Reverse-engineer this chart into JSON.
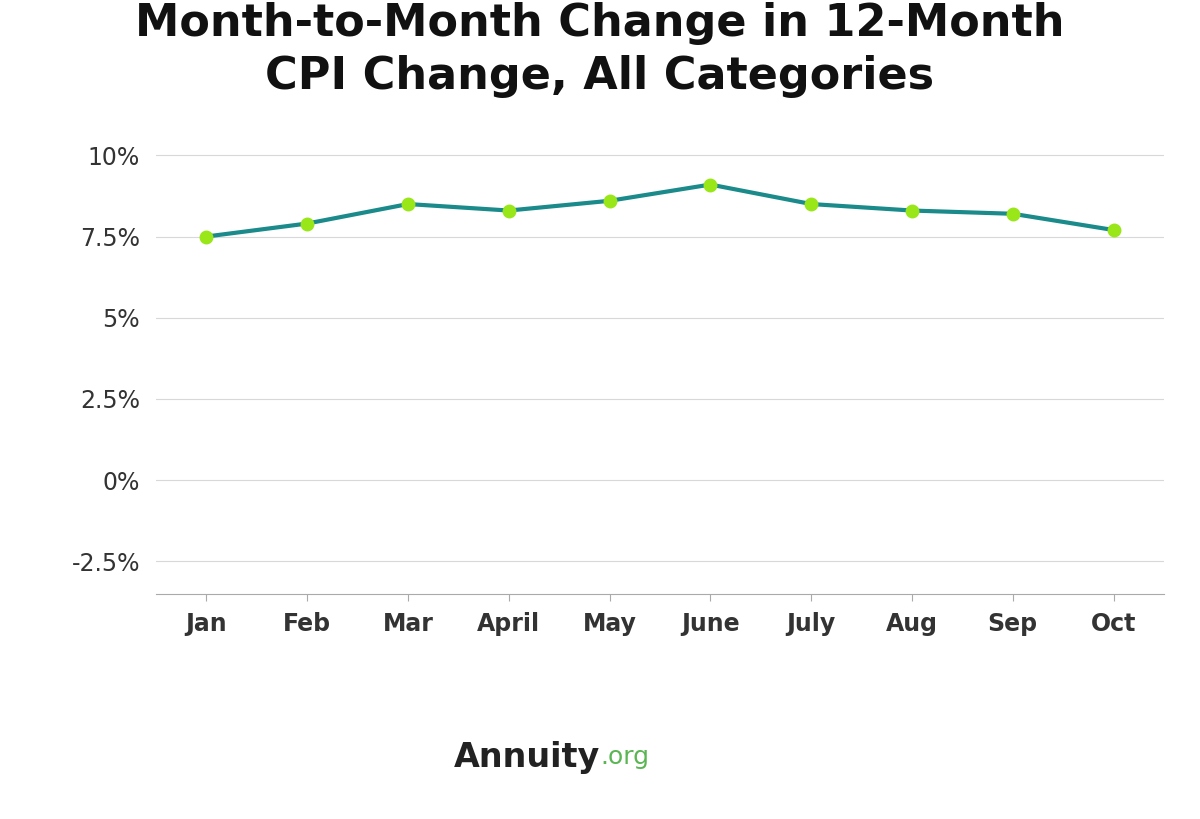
{
  "title": "Month-to-Month Change in 12-Month\nCPI Change, All Categories",
  "categories": [
    "Jan",
    "Feb",
    "Mar",
    "April",
    "May",
    "June",
    "July",
    "Aug",
    "Sep",
    "Oct"
  ],
  "values": [
    7.5,
    7.9,
    8.5,
    8.3,
    8.6,
    9.1,
    8.5,
    8.3,
    8.2,
    7.7
  ],
  "line_color": "#1a8a8a",
  "marker_color": "#99e619",
  "background_color": "#ffffff",
  "plot_bg_color": "#ffffff",
  "footer_bg_color": "#edf0f5",
  "yticks": [
    -2.5,
    0.0,
    2.5,
    5.0,
    7.5,
    10.0
  ],
  "ytick_labels": [
    "-2.5%",
    "0%",
    "2.5%",
    "5%",
    "7.5%",
    "10%"
  ],
  "ylim": [
    -3.5,
    11.0
  ],
  "title_fontsize": 32,
  "tick_fontsize": 17,
  "footer_text_bold": "Annuity",
  "footer_text_normal": ".org",
  "footer_fontsize": 24
}
